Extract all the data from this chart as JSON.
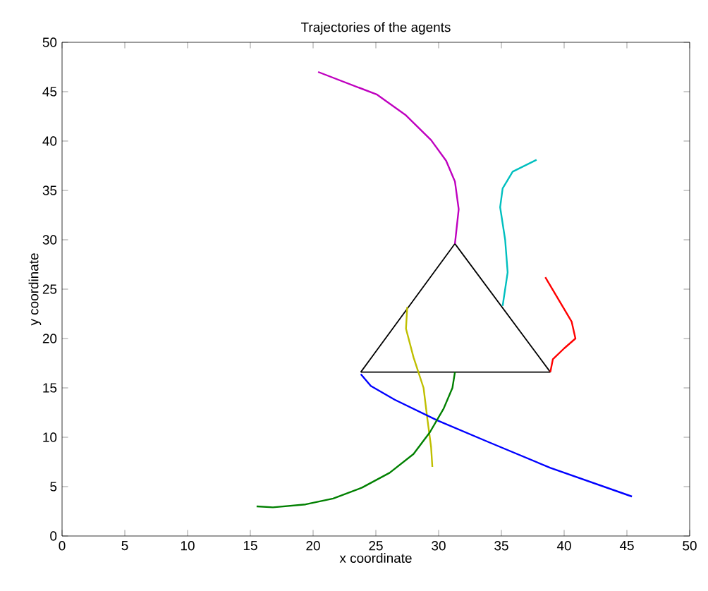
{
  "chart_data": {
    "type": "line",
    "title": "Trajectories of the agents",
    "xlabel": "x coordinate",
    "ylabel": "y coordinate",
    "xlim": [
      0,
      50
    ],
    "ylim": [
      0,
      50
    ],
    "xticks": [
      0,
      5,
      10,
      15,
      20,
      25,
      30,
      35,
      40,
      45,
      50
    ],
    "yticks": [
      0,
      5,
      10,
      15,
      20,
      25,
      30,
      35,
      40,
      45,
      50
    ],
    "grid": false,
    "marker": "none",
    "line_style": "solid",
    "series": [
      {
        "color": "#000000",
        "x": [
          23.8,
          31.3,
          38.9
        ],
        "values": [
          16.6,
          29.6,
          16.6
        ]
      },
      {
        "color": "#000000",
        "x": [
          23.8,
          38.9
        ],
        "values": [
          16.6,
          16.6
        ]
      },
      {
        "color": "#bf00bf",
        "x": [
          20.4,
          25.1,
          27.4,
          29.4,
          30.6,
          31.3,
          31.6,
          31.3
        ],
        "values": [
          47.0,
          44.7,
          42.6,
          40.1,
          38.0,
          35.9,
          33.1,
          29.6
        ]
      },
      {
        "color": "#00bfbf",
        "x": [
          37.8,
          35.9,
          35.1,
          34.9,
          35.3,
          35.5,
          35.1
        ],
        "values": [
          38.1,
          36.9,
          35.2,
          33.3,
          30.0,
          26.7,
          23.3
        ]
      },
      {
        "color": "#ff0000",
        "x": [
          38.5,
          40.6,
          40.9,
          40.0,
          39.1,
          38.9
        ],
        "values": [
          26.2,
          21.7,
          20.0,
          19.0,
          17.9,
          16.6
        ]
      },
      {
        "color": "#bfbf00",
        "x": [
          27.5,
          27.4,
          28.0,
          28.8,
          29.1,
          29.4,
          29.5
        ],
        "values": [
          23.2,
          21.0,
          18.1,
          15.0,
          11.9,
          9.0,
          7.0
        ]
      },
      {
        "color": "#0000ff",
        "x": [
          23.8,
          24.6,
          26.5,
          29.9,
          34.0,
          38.9,
          45.4
        ],
        "values": [
          16.4,
          15.2,
          13.8,
          11.7,
          9.5,
          6.9,
          4.0
        ]
      },
      {
        "color": "#008000",
        "x": [
          15.5,
          16.8,
          19.4,
          21.6,
          23.9,
          26.1,
          28.0,
          29.3,
          30.4,
          31.1,
          31.3
        ],
        "values": [
          3.0,
          2.9,
          3.2,
          3.8,
          4.9,
          6.4,
          8.3,
          10.5,
          12.9,
          15.0,
          16.6
        ]
      }
    ]
  }
}
